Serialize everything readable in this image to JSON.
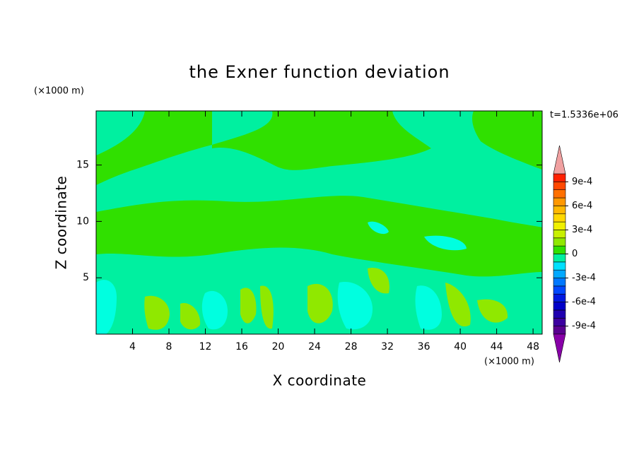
{
  "chart_data": {
    "type": "contour",
    "title": "the Exner function deviation",
    "x_label": "X coordinate",
    "y_label": "Z coordinate",
    "x_unit": "(×1000 m)",
    "y_unit": "(×1000 m)",
    "annotation": "t=1.5336e+06",
    "xlim": [
      0,
      49
    ],
    "ylim": [
      0,
      19.8
    ],
    "xticks": [
      4,
      8,
      12,
      16,
      20,
      24,
      28,
      32,
      36,
      40,
      44,
      48
    ],
    "yticks": [
      5,
      10,
      15
    ],
    "colorbar": {
      "levels": [
        -0.001,
        -0.0009,
        -0.0008,
        -0.0007,
        -0.0006,
        -0.0005,
        -0.0004,
        -0.0003,
        -0.0002,
        -0.0001,
        0,
        0.0001,
        0.0002,
        0.0003,
        0.0004,
        0.0005,
        0.0006,
        0.0007,
        0.0008,
        0.0009,
        0.001
      ],
      "colors": [
        "#5a0090",
        "#3c00a0",
        "#2000b0",
        "#0000c8",
        "#0018e0",
        "#0048ff",
        "#0078ff",
        "#00a8ff",
        "#00e0ff",
        "#00f0a0",
        "#30e000",
        "#90e800",
        "#c8f000",
        "#f0f000",
        "#ffd800",
        "#ffb800",
        "#ff9800",
        "#ff7000",
        "#ff4800",
        "#ff2000"
      ],
      "under_color": "#8800a8",
      "over_color": "#f0a0a0",
      "ticks": [
        {
          "value": -0.0009,
          "label": "-9e-4"
        },
        {
          "value": -0.0006,
          "label": "-6e-4"
        },
        {
          "value": -0.0003,
          "label": "-3e-4"
        },
        0,
        {
          "value": 0.0003,
          "label": "3e-4"
        },
        {
          "value": 0.0006,
          "label": "6e-4"
        },
        {
          "value": 0.0009,
          "label": "9e-4"
        }
      ]
    }
  }
}
